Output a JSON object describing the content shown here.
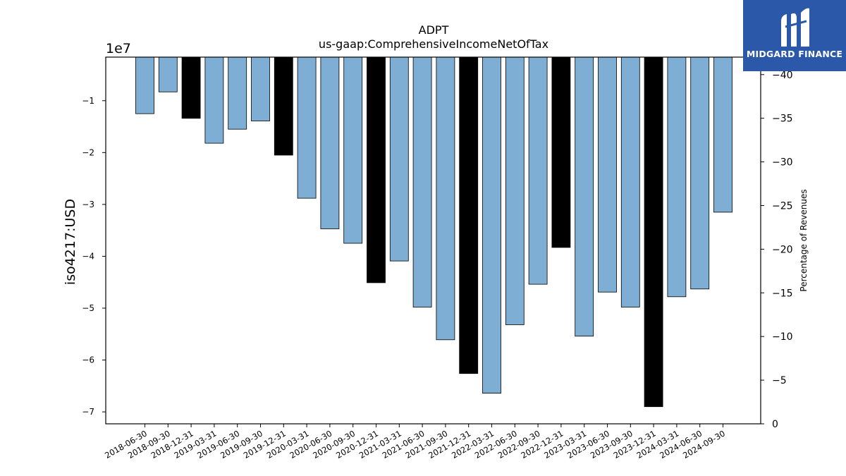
{
  "chart_data": {
    "type": "bar",
    "title": "ADPT",
    "subtitle": "us-gaap:ComprehensiveIncomeNetOfTax",
    "ylabel": "iso4217:USD",
    "y_offset_label": "1e7",
    "y2label": "Percentage of Revenues",
    "categories": [
      "2018-06-30",
      "2018-09-30",
      "2018-12-31",
      "2019-03-31",
      "2019-06-30",
      "2019-09-30",
      "2019-12-31",
      "2020-03-31",
      "2020-06-30",
      "2020-09-30",
      "2020-12-31",
      "2021-03-31",
      "2021-06-30",
      "2021-09-30",
      "2021-12-31",
      "2022-03-31",
      "2022-06-30",
      "2022-09-30",
      "2022-12-31",
      "2023-03-31",
      "2023-06-30",
      "2023-09-30",
      "2023-12-31",
      "2024-03-31",
      "2024-06-30",
      "2024-09-30"
    ],
    "values": [
      -12500000,
      -8300000,
      -13400000,
      -18200000,
      -15500000,
      -13900000,
      -20500000,
      -28800000,
      -34700000,
      -37500000,
      -45100000,
      -40900000,
      -49800000,
      -56100000,
      -62600000,
      -66400000,
      -53200000,
      -45400000,
      -38300000,
      -55400000,
      -46900000,
      -49800000,
      -69000000,
      -47800000,
      -46300000,
      -31500000
    ],
    "highlight": [
      false,
      false,
      true,
      false,
      false,
      false,
      true,
      false,
      false,
      false,
      true,
      false,
      false,
      false,
      true,
      false,
      false,
      false,
      true,
      false,
      false,
      false,
      true,
      false,
      false,
      false
    ],
    "colors": {
      "bar": "#7eaed3",
      "highlight": "#000000",
      "edge": "#000000"
    },
    "ylim": [
      -72300000,
      -1600000
    ],
    "yticks": [
      -10000000,
      -20000000,
      -30000000,
      -40000000,
      -50000000,
      -60000000,
      -70000000
    ],
    "ytick_labels": [
      "−1",
      "−2",
      "−3",
      "−4",
      "−5",
      "−6",
      "−7"
    ],
    "y2lim": [
      0,
      42
    ],
    "y2ticks": [
      0,
      5,
      10,
      15,
      20,
      25,
      30,
      35,
      40
    ],
    "y2tick_labels": [
      "0",
      "−5",
      "−10",
      "−15",
      "−20",
      "−25",
      "−30",
      "−35",
      "−40"
    ],
    "grid": false,
    "legend": "none"
  },
  "logo": {
    "text": "MIDGARD FINANCE",
    "bg": "#2b58a8"
  }
}
